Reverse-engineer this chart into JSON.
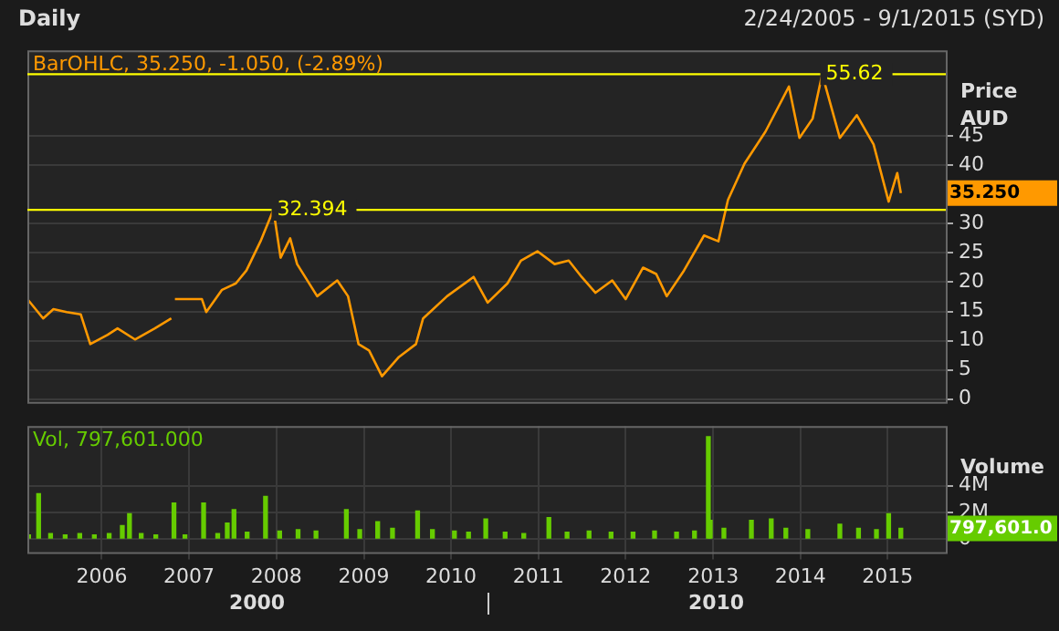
{
  "chart_data": [
    {
      "type": "line",
      "title": "Daily",
      "subtitle": "2/24/2005 - 9/1/2015 (SYD)",
      "ylabel": "Price AUD",
      "color": "#ff9900",
      "annotations": [
        "BarOHLC, 35.250, -1.050, (-2.89%)",
        "35.250"
      ],
      "x": [
        "2005-02-24",
        "2005-05-01",
        "2005-06-13",
        "2005-08-07",
        "2005-10-05",
        "2005-11-14",
        "2006-01-26",
        "2006-03-08",
        "2006-05-20",
        "2006-08-11",
        "2006-10-19",
        "2006-10-26",
        "2006-11-03",
        "2007-02-24",
        "2007-03-14",
        "2007-05-19",
        "2007-07-16",
        "2007-08-29",
        "2007-10-27",
        "2007-12-20",
        "2008-01-19",
        "2008-02-28",
        "2008-03-28",
        "2008-06-20",
        "2008-09-12",
        "2008-10-27",
        "2008-12-10",
        "2009-01-23",
        "2009-03-18",
        "2009-05-28",
        "2009-08-07",
        "2009-09-06",
        "2009-12-15",
        "2010-04-05",
        "2010-06-03",
        "2010-08-25",
        "2010-10-20",
        "2010-12-28",
        "2011-03-10",
        "2011-05-08",
        "2011-07-01",
        "2011-08-28",
        "2011-11-06",
        "2012-01-01",
        "2012-03-14",
        "2012-05-08",
        "2012-06-21",
        "2012-09-01",
        "2012-11-24",
        "2013-01-23",
        "2013-03-04",
        "2013-05-12",
        "2013-08-08",
        "2013-11-14",
        "2013-12-28",
        "2014-02-21",
        "2014-04-02",
        "2014-06-15",
        "2014-08-25",
        "2014-11-03",
        "2015-01-05",
        "2015-02-10",
        "2015-02-25"
      ],
      "values": [
        17.1,
        13.8,
        15.4,
        14.9,
        14.5,
        9.4,
        11.0,
        12.1,
        10.2,
        12.1,
        13.8,
        null,
        17.1,
        17.1,
        14.9,
        18.7,
        19.8,
        22.0,
        27.0,
        32.4,
        24.2,
        27.5,
        23.1,
        17.6,
        20.3,
        17.6,
        9.4,
        8.3,
        3.9,
        7.2,
        9.4,
        13.8,
        17.6,
        20.9,
        16.5,
        19.8,
        23.7,
        25.3,
        23.1,
        23.7,
        20.9,
        18.2,
        20.3,
        17.1,
        22.5,
        21.4,
        17.6,
        22.0,
        28.0,
        27.0,
        34.1,
        40.3,
        45.8,
        53.5,
        44.7,
        48.0,
        55.6,
        44.7,
        48.6,
        43.6,
        33.8,
        38.7,
        35.25
      ],
      "xlim": [
        "2005-02-24",
        "2015-09-01"
      ],
      "xticks": [
        {
          "value": "2006-01-01",
          "label": null
        },
        {
          "value": "2007-01-01",
          "label": null
        },
        {
          "value": "2008-01-01",
          "label": null
        },
        {
          "value": "2009-01-01",
          "label": null
        },
        {
          "value": "2010-01-01",
          "label": null
        },
        {
          "value": "2011-01-01",
          "label": null
        },
        {
          "value": "2012-01-01",
          "label": null
        },
        {
          "value": "2013-01-01",
          "label": null
        },
        {
          "value": "2014-01-01",
          "label": null
        },
        {
          "value": "2015-01-01",
          "label": null
        }
      ],
      "ylim": [
        -0.5,
        59.7
      ],
      "yticks": [
        0,
        5,
        10,
        15,
        20,
        25,
        30,
        40,
        45
      ],
      "ref_lines": [
        {
          "axis": "y",
          "value": 55.62,
          "label": "55.62",
          "color": "#ffff00"
        },
        {
          "axis": "y",
          "value": 32.394,
          "label": "32.394",
          "color": "#ffff00"
        }
      ],
      "grid": true,
      "tick_labels": "y"
    },
    {
      "type": "bar",
      "ylabel": "Volume",
      "color": "#66cc00",
      "annotations": [
        "Vol, 797,601.000",
        "797,601.0",
        "2000",
        "2010"
      ],
      "x": [
        "2005-03-01",
        "2005-04-12",
        "2005-06-01",
        "2005-08-01",
        "2005-10-01",
        "2005-12-01",
        "2006-02-01",
        "2006-03-28",
        "2006-04-27",
        "2006-06-15",
        "2006-08-15",
        "2006-10-30",
        "2006-12-15",
        "2007-03-03",
        "2007-05-01",
        "2007-06-10",
        "2007-07-08",
        "2007-09-01",
        "2007-11-17",
        "2008-01-15",
        "2008-04-01",
        "2008-06-15",
        "2008-10-20",
        "2008-12-15",
        "2009-02-28",
        "2009-05-01",
        "2009-08-14",
        "2009-10-15",
        "2010-01-15",
        "2010-03-15",
        "2010-05-26",
        "2010-08-15",
        "2010-11-01",
        "2011-02-14",
        "2011-05-01",
        "2011-08-01",
        "2011-11-01",
        "2012-02-01",
        "2012-05-01",
        "2012-08-01",
        "2012-10-15",
        "2012-12-12",
        "2012-12-20",
        "2013-02-15",
        "2013-06-10",
        "2013-09-01",
        "2013-11-01",
        "2014-02-01",
        "2014-06-15",
        "2014-09-01",
        "2014-11-15",
        "2015-01-05",
        "2015-02-25"
      ],
      "values": [
        300000,
        3400000,
        400000,
        300000,
        400000,
        300000,
        400000,
        1000000,
        1900000,
        400000,
        300000,
        2700000,
        300000,
        2700000,
        400000,
        1200000,
        2200000,
        500000,
        3200000,
        600000,
        700000,
        600000,
        2200000,
        700000,
        1300000,
        800000,
        2100000,
        700000,
        600000,
        500000,
        1500000,
        500000,
        400000,
        1600000,
        500000,
        600000,
        500000,
        500000,
        600000,
        500000,
        600000,
        7700000,
        1400000,
        800000,
        1400000,
        1500000,
        800000,
        700000,
        1100000,
        800000,
        700000,
        1900000,
        797601
      ],
      "xlim": [
        "2005-02-24",
        "2015-09-01"
      ],
      "xticks": [
        {
          "value": "2006-01-01",
          "label": "2006"
        },
        {
          "value": "2007-01-01",
          "label": "2007"
        },
        {
          "value": "2008-01-01",
          "label": "2008"
        },
        {
          "value": "2009-01-01",
          "label": "2009"
        },
        {
          "value": "2010-01-01",
          "label": "2010"
        },
        {
          "value": "2011-01-01",
          "label": "2011"
        },
        {
          "value": "2012-01-01",
          "label": "2012"
        },
        {
          "value": "2013-01-01",
          "label": "2013"
        },
        {
          "value": "2014-01-01",
          "label": "2014"
        },
        {
          "value": "2015-01-01",
          "label": "2015"
        }
      ],
      "ylim": [
        -1000000,
        8500000
      ],
      "yticks": [
        0,
        {
          "value": 2000000,
          "label": "2M"
        },
        {
          "value": 4000000,
          "label": "4M"
        }
      ],
      "grid": true
    }
  ]
}
